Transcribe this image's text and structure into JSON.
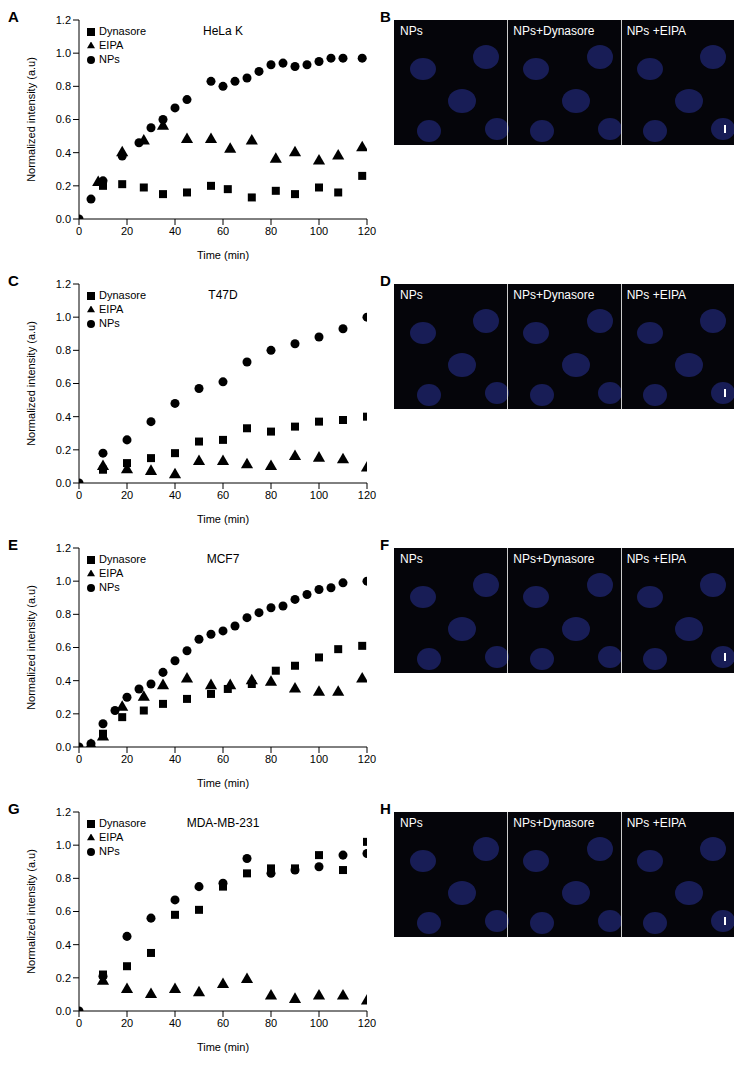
{
  "chart_data": [
    {
      "panel": "A",
      "type": "scatter",
      "title": "HeLa K",
      "x_label": "Time (min)",
      "y_label": "Normalized intensity (a.u)",
      "color": "#000000",
      "grid": false,
      "legend": "upper left",
      "xlim": [
        0,
        120
      ],
      "xticks": [
        0,
        20,
        40,
        60,
        80,
        100,
        120
      ],
      "ylim": [
        0,
        1.2
      ],
      "yticks": [
        {
          "value": 0,
          "label": "0.0"
        },
        0.2,
        0.4,
        0.6,
        0.8,
        {
          "value": 1,
          "label": "1.0"
        },
        1.2
      ],
      "series": [
        {
          "name": "NPs",
          "marker": "circle",
          "x": [
            0,
            5,
            10,
            18,
            25,
            30,
            35,
            40,
            45,
            55,
            60,
            65,
            70,
            75,
            80,
            85,
            90,
            95,
            100,
            105,
            110,
            118
          ],
          "values": [
            0,
            0.12,
            0.23,
            0.38,
            0.46,
            0.55,
            0.6,
            0.67,
            0.72,
            0.83,
            0.8,
            0.83,
            0.85,
            0.89,
            0.93,
            0.94,
            0.92,
            0.93,
            0.95,
            0.97,
            0.97,
            0.97
          ]
        },
        {
          "name": "Dynasore",
          "marker": "square",
          "x": [
            10,
            18,
            27,
            35,
            45,
            55,
            62,
            72,
            82,
            90,
            100,
            108,
            118
          ],
          "values": [
            0.2,
            0.21,
            0.19,
            0.15,
            0.16,
            0.2,
            0.18,
            0.13,
            0.17,
            0.15,
            0.19,
            0.16,
            0.26
          ]
        },
        {
          "name": "EIPA",
          "marker": "triangle",
          "x": [
            8,
            18,
            27,
            35,
            45,
            55,
            63,
            72,
            82,
            90,
            100,
            108,
            118
          ],
          "values": [
            0.22,
            0.4,
            0.47,
            0.56,
            0.48,
            0.48,
            0.42,
            0.47,
            0.36,
            0.4,
            0.35,
            0.38,
            0.43
          ]
        }
      ]
    },
    {
      "panel": "C",
      "type": "scatter",
      "title": "T47D",
      "x_label": "Time (min)",
      "y_label": "Normalized intensity (a.u)",
      "color": "#000000",
      "grid": false,
      "legend": "upper left",
      "xlim": [
        0,
        120
      ],
      "xticks": [
        0,
        20,
        40,
        60,
        80,
        100,
        120
      ],
      "ylim": [
        0,
        1.2
      ],
      "yticks": [
        {
          "value": 0,
          "label": "0.0"
        },
        0.2,
        0.4,
        0.6,
        0.8,
        {
          "value": 1,
          "label": "1.0"
        },
        1.2
      ],
      "series": [
        {
          "name": "NPs",
          "marker": "circle",
          "x": [
            0,
            10,
            20,
            30,
            40,
            50,
            60,
            70,
            80,
            90,
            100,
            110,
            120
          ],
          "values": [
            0,
            0.18,
            0.26,
            0.37,
            0.48,
            0.57,
            0.61,
            0.73,
            0.8,
            0.84,
            0.88,
            0.93,
            1.0
          ]
        },
        {
          "name": "Dynasore",
          "marker": "square",
          "x": [
            10,
            20,
            30,
            40,
            50,
            60,
            70,
            80,
            90,
            100,
            110,
            120
          ],
          "values": [
            0.08,
            0.12,
            0.15,
            0.18,
            0.25,
            0.26,
            0.33,
            0.31,
            0.34,
            0.37,
            0.38,
            0.4
          ]
        },
        {
          "name": "EIPA",
          "marker": "triangle",
          "x": [
            10,
            20,
            30,
            40,
            50,
            60,
            70,
            80,
            90,
            100,
            110,
            120
          ],
          "values": [
            0.1,
            0.08,
            0.07,
            0.05,
            0.13,
            0.13,
            0.11,
            0.1,
            0.16,
            0.15,
            0.14,
            0.09
          ]
        }
      ]
    },
    {
      "panel": "E",
      "type": "scatter",
      "title": "MCF7",
      "x_label": "Time (min)",
      "y_label": "Normalized intensity (a.u)",
      "color": "#000000",
      "grid": false,
      "legend": "upper left",
      "xlim": [
        0,
        120
      ],
      "xticks": [
        0,
        20,
        40,
        60,
        80,
        100,
        120
      ],
      "ylim": [
        0,
        1.2
      ],
      "yticks": [
        {
          "value": 0,
          "label": "0.0"
        },
        0.2,
        0.4,
        0.6,
        0.8,
        {
          "value": 1,
          "label": "1.0"
        },
        1.2
      ],
      "series": [
        {
          "name": "NPs",
          "marker": "circle",
          "x": [
            0,
            5,
            10,
            15,
            20,
            25,
            30,
            35,
            40,
            45,
            50,
            55,
            60,
            65,
            70,
            75,
            80,
            85,
            90,
            95,
            100,
            105,
            110,
            120
          ],
          "values": [
            0,
            0.02,
            0.14,
            0.22,
            0.3,
            0.35,
            0.38,
            0.45,
            0.52,
            0.58,
            0.65,
            0.68,
            0.7,
            0.73,
            0.78,
            0.81,
            0.84,
            0.85,
            0.89,
            0.92,
            0.95,
            0.96,
            0.99,
            1.0
          ]
        },
        {
          "name": "Dynasore",
          "marker": "square",
          "x": [
            5,
            10,
            18,
            27,
            35,
            45,
            55,
            62,
            72,
            82,
            90,
            100,
            108,
            118
          ],
          "values": [
            0,
            0.08,
            0.18,
            0.22,
            0.26,
            0.29,
            0.32,
            0.35,
            0.38,
            0.46,
            0.49,
            0.54,
            0.59,
            0.61
          ]
        },
        {
          "name": "EIPA",
          "marker": "triangle",
          "x": [
            5,
            10,
            18,
            27,
            35,
            45,
            55,
            63,
            72,
            80,
            90,
            100,
            108,
            118
          ],
          "values": [
            0.01,
            0.06,
            0.24,
            0.3,
            0.37,
            0.41,
            0.37,
            0.37,
            0.4,
            0.39,
            0.35,
            0.33,
            0.33,
            0.41
          ]
        }
      ]
    },
    {
      "panel": "G",
      "type": "scatter",
      "title": "MDA-MB-231",
      "x_label": "Time (min)",
      "y_label": "Normalized intensity (a.u)",
      "color": "#000000",
      "grid": false,
      "legend": "upper left",
      "xlim": [
        0,
        120
      ],
      "xticks": [
        0,
        20,
        40,
        60,
        80,
        100,
        120
      ],
      "ylim": [
        0,
        1.2
      ],
      "yticks": [
        {
          "value": 0,
          "label": "0.0"
        },
        0.2,
        0.4,
        0.6,
        0.8,
        {
          "value": 1,
          "label": "1.0"
        },
        1.2
      ],
      "series": [
        {
          "name": "NPs",
          "marker": "circle",
          "x": [
            0,
            10,
            20,
            30,
            40,
            50,
            60,
            70,
            80,
            90,
            100,
            110,
            120
          ],
          "values": [
            0,
            0.21,
            0.45,
            0.56,
            0.67,
            0.75,
            0.77,
            0.92,
            0.83,
            0.85,
            0.87,
            0.94,
            0.95
          ]
        },
        {
          "name": "Dynasore",
          "marker": "square",
          "x": [
            10,
            20,
            30,
            40,
            50,
            60,
            70,
            80,
            90,
            100,
            110,
            120
          ],
          "values": [
            0.22,
            0.27,
            0.35,
            0.58,
            0.61,
            0.75,
            0.83,
            0.86,
            0.86,
            0.94,
            0.85,
            1.02
          ]
        },
        {
          "name": "EIPA",
          "marker": "triangle",
          "x": [
            10,
            20,
            30,
            40,
            50,
            60,
            70,
            80,
            90,
            100,
            110,
            120
          ],
          "values": [
            0.18,
            0.13,
            0.1,
            0.13,
            0.11,
            0.16,
            0.19,
            0.09,
            0.07,
            0.09,
            0.09,
            0.06
          ]
        }
      ]
    }
  ],
  "images": [
    {
      "panel": "B",
      "labels": [
        "NPs",
        "NPs+Dynasore",
        "NPs +EIPA"
      ]
    },
    {
      "panel": "D",
      "labels": [
        "NPs",
        "NPs+Dynasore",
        "NPs +EIPA"
      ]
    },
    {
      "panel": "F",
      "labels": [
        "NPs",
        "NPs+Dynasore",
        "NPs +EIPA"
      ]
    },
    {
      "panel": "H",
      "labels": [
        "NPs",
        "NPs+Dynasore",
        "NPs +EIPA"
      ]
    }
  ]
}
